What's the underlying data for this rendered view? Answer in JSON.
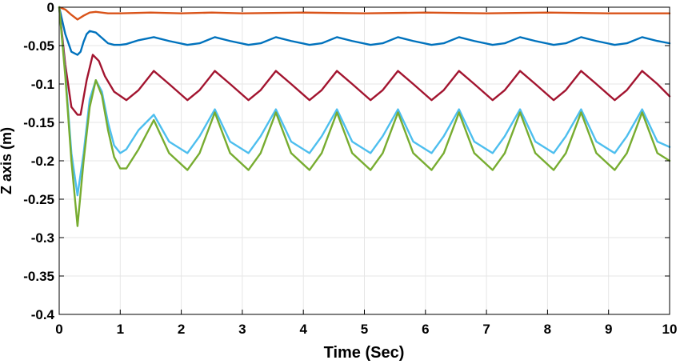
{
  "chart_data": {
    "type": "line",
    "title": "",
    "xlabel": "Time (Sec)",
    "ylabel": "Z axis (m)",
    "xlim": [
      0,
      10
    ],
    "ylim": [
      -0.4,
      0
    ],
    "xticks": [
      0,
      1,
      2,
      3,
      4,
      5,
      6,
      7,
      8,
      9,
      10
    ],
    "yticks": [
      0,
      -0.05,
      -0.1,
      -0.15,
      -0.2,
      -0.25,
      -0.3,
      -0.35,
      -0.4
    ],
    "xtick_labels": [
      "0",
      "1",
      "2",
      "3",
      "4",
      "5",
      "6",
      "7",
      "8",
      "9",
      "10"
    ],
    "ytick_labels": [
      "0",
      "-0.05",
      "-0.1",
      "-0.15",
      "-0.2",
      "-0.25",
      "-0.3",
      "-0.35",
      "-0.4"
    ],
    "grid": true,
    "legend": "none",
    "series": [
      {
        "color": "#d95319",
        "x": [
          0,
          0.1,
          0.2,
          0.3,
          0.4,
          0.5,
          0.6,
          0.8,
          1,
          1.5,
          2,
          2.5,
          3,
          4,
          5,
          6,
          7,
          8,
          9,
          10
        ],
        "y": [
          0,
          -0.003,
          -0.01,
          -0.016,
          -0.011,
          -0.007,
          -0.006,
          -0.008,
          -0.008,
          -0.007,
          -0.008,
          -0.007,
          -0.008,
          -0.007,
          -0.008,
          -0.007,
          -0.008,
          -0.007,
          -0.008,
          -0.008
        ]
      },
      {
        "color": "#0072bd",
        "x": [
          0,
          0.1,
          0.2,
          0.3,
          0.35,
          0.4,
          0.45,
          0.5,
          0.6,
          0.7,
          0.8,
          0.9,
          1,
          1.1,
          1.3,
          1.55,
          1.8,
          2.1,
          2.3,
          2.55,
          2.8,
          3.1,
          3.3,
          3.55,
          3.8,
          4.1,
          4.3,
          4.55,
          4.8,
          5.1,
          5.3,
          5.55,
          5.8,
          6.1,
          6.3,
          6.55,
          6.8,
          7.1,
          7.3,
          7.55,
          7.8,
          8.1,
          8.3,
          8.55,
          8.8,
          9.1,
          9.3,
          9.55,
          9.8,
          10
        ],
        "y": [
          0,
          -0.035,
          -0.058,
          -0.062,
          -0.058,
          -0.045,
          -0.035,
          -0.031,
          -0.033,
          -0.04,
          -0.047,
          -0.049,
          -0.049,
          -0.048,
          -0.043,
          -0.039,
          -0.044,
          -0.049,
          -0.047,
          -0.039,
          -0.044,
          -0.049,
          -0.047,
          -0.039,
          -0.044,
          -0.049,
          -0.047,
          -0.039,
          -0.044,
          -0.049,
          -0.047,
          -0.039,
          -0.044,
          -0.049,
          -0.047,
          -0.039,
          -0.044,
          -0.049,
          -0.047,
          -0.039,
          -0.044,
          -0.049,
          -0.047,
          -0.039,
          -0.044,
          -0.049,
          -0.047,
          -0.039,
          -0.044,
          -0.047
        ]
      },
      {
        "color": "#a2142f",
        "x": [
          0,
          0.1,
          0.2,
          0.3,
          0.35,
          0.45,
          0.55,
          0.65,
          0.75,
          0.9,
          1.1,
          1.3,
          1.55,
          1.8,
          2.1,
          2.3,
          2.55,
          2.8,
          3.1,
          3.3,
          3.55,
          3.8,
          4.1,
          4.3,
          4.55,
          4.8,
          5.1,
          5.3,
          5.55,
          5.8,
          6.1,
          6.3,
          6.55,
          6.8,
          7.1,
          7.3,
          7.55,
          7.8,
          8.1,
          8.3,
          8.55,
          8.8,
          9.1,
          9.3,
          9.55,
          9.8,
          10
        ],
        "y": [
          0,
          -0.075,
          -0.13,
          -0.14,
          -0.14,
          -0.095,
          -0.062,
          -0.07,
          -0.09,
          -0.11,
          -0.121,
          -0.108,
          -0.083,
          -0.1,
          -0.121,
          -0.108,
          -0.083,
          -0.1,
          -0.121,
          -0.108,
          -0.083,
          -0.1,
          -0.121,
          -0.108,
          -0.083,
          -0.1,
          -0.121,
          -0.108,
          -0.083,
          -0.1,
          -0.121,
          -0.108,
          -0.083,
          -0.1,
          -0.121,
          -0.108,
          -0.083,
          -0.1,
          -0.121,
          -0.108,
          -0.083,
          -0.1,
          -0.121,
          -0.108,
          -0.083,
          -0.1,
          -0.116
        ]
      },
      {
        "color": "#4dbeee",
        "x": [
          0,
          0.1,
          0.2,
          0.3,
          0.4,
          0.5,
          0.6,
          0.7,
          0.8,
          0.9,
          1,
          1.1,
          1.3,
          1.55,
          1.8,
          2.1,
          2.3,
          2.55,
          2.8,
          3.1,
          3.3,
          3.55,
          3.8,
          4.1,
          4.3,
          4.55,
          4.8,
          5.1,
          5.3,
          5.55,
          5.8,
          6.1,
          6.3,
          6.55,
          6.8,
          7.1,
          7.3,
          7.55,
          7.8,
          8.1,
          8.3,
          8.55,
          8.8,
          9.1,
          9.3,
          9.55,
          9.8,
          10
        ],
        "y": [
          0,
          -0.085,
          -0.19,
          -0.245,
          -0.19,
          -0.12,
          -0.095,
          -0.11,
          -0.15,
          -0.18,
          -0.19,
          -0.185,
          -0.16,
          -0.14,
          -0.175,
          -0.19,
          -0.168,
          -0.133,
          -0.175,
          -0.19,
          -0.168,
          -0.133,
          -0.175,
          -0.19,
          -0.168,
          -0.133,
          -0.175,
          -0.19,
          -0.168,
          -0.133,
          -0.175,
          -0.19,
          -0.168,
          -0.133,
          -0.175,
          -0.19,
          -0.168,
          -0.133,
          -0.175,
          -0.19,
          -0.168,
          -0.133,
          -0.175,
          -0.19,
          -0.168,
          -0.133,
          -0.175,
          -0.182
        ]
      },
      {
        "color": "#77ac30",
        "x": [
          0,
          0.1,
          0.2,
          0.3,
          0.4,
          0.5,
          0.6,
          0.7,
          0.8,
          0.9,
          1,
          1.1,
          1.3,
          1.55,
          1.8,
          2.1,
          2.3,
          2.55,
          2.8,
          3.1,
          3.3,
          3.55,
          3.8,
          4.1,
          4.3,
          4.55,
          4.8,
          5.1,
          5.3,
          5.55,
          5.8,
          6.1,
          6.3,
          6.55,
          6.8,
          7.1,
          7.3,
          7.55,
          7.8,
          8.1,
          8.3,
          8.55,
          8.8,
          9.1,
          9.3,
          9.55,
          9.8,
          10
        ],
        "y": [
          0,
          -0.09,
          -0.2,
          -0.285,
          -0.2,
          -0.13,
          -0.095,
          -0.115,
          -0.16,
          -0.195,
          -0.21,
          -0.21,
          -0.185,
          -0.147,
          -0.19,
          -0.212,
          -0.19,
          -0.137,
          -0.19,
          -0.212,
          -0.19,
          -0.137,
          -0.19,
          -0.212,
          -0.19,
          -0.137,
          -0.19,
          -0.212,
          -0.19,
          -0.137,
          -0.19,
          -0.212,
          -0.19,
          -0.137,
          -0.19,
          -0.212,
          -0.19,
          -0.137,
          -0.19,
          -0.212,
          -0.19,
          -0.137,
          -0.19,
          -0.212,
          -0.19,
          -0.137,
          -0.19,
          -0.2
        ]
      }
    ]
  }
}
